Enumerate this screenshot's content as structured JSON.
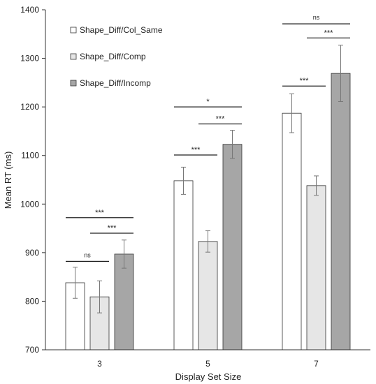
{
  "chart_data": {
    "type": "bar",
    "xlabel": "Display Set Size",
    "ylabel": "Mean RT (ms)",
    "ylim": [
      700,
      1400
    ],
    "yticks": [
      700,
      800,
      900,
      1000,
      1100,
      1200,
      1300,
      1400
    ],
    "categories": [
      "3",
      "5",
      "7"
    ],
    "legend_position": "top-left",
    "series": [
      {
        "name": "Shape_Diff/Col_Same",
        "color": "#ffffff",
        "values": [
          838,
          1048,
          1187
        ],
        "errors": [
          32,
          28,
          40
        ]
      },
      {
        "name": "Shape_Diff/Comp",
        "color": "#e6e6e6",
        "values": [
          809,
          923,
          1038
        ],
        "errors": [
          33,
          22,
          20
        ]
      },
      {
        "name": "Shape_Diff/Incomp",
        "color": "#a6a6a6",
        "values": [
          897,
          1123,
          1269
        ],
        "errors": [
          29,
          29,
          58
        ]
      }
    ],
    "significance": [
      {
        "category": "3",
        "from": 0,
        "to": 1,
        "label": "ns",
        "y": 882
      },
      {
        "category": "3",
        "from": 0,
        "to": 2,
        "label": "***",
        "y": 972
      },
      {
        "category": "3",
        "from": 1,
        "to": 2,
        "label": "***",
        "y": 940
      },
      {
        "category": "5",
        "from": 0,
        "to": 1,
        "label": "***",
        "y": 1101
      },
      {
        "category": "5",
        "from": 0,
        "to": 2,
        "label": "*",
        "y": 1200
      },
      {
        "category": "5",
        "from": 1,
        "to": 2,
        "label": "***",
        "y": 1165
      },
      {
        "category": "7",
        "from": 0,
        "to": 1,
        "label": "***",
        "y": 1243
      },
      {
        "category": "7",
        "from": 0,
        "to": 2,
        "label": "ns",
        "y": 1371
      },
      {
        "category": "7",
        "from": 1,
        "to": 2,
        "label": "***",
        "y": 1342
      }
    ]
  }
}
